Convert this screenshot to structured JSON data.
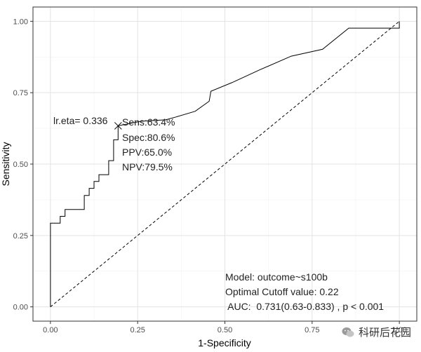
{
  "chart_data": {
    "type": "line",
    "title": "",
    "xlabel": "1-Specificity",
    "ylabel": "Sensitivity",
    "xlim": [
      -0.05,
      1.05
    ],
    "ylim": [
      -0.05,
      1.05
    ],
    "xticks": [
      0.0,
      0.25,
      0.5,
      0.75,
      1.0
    ],
    "xtick_labels": [
      "0.00",
      "0.25",
      "0.50",
      "0.75",
      "1.00"
    ],
    "yticks": [
      0.0,
      0.25,
      0.5,
      0.75,
      1.0
    ],
    "ytick_labels": [
      "0.00",
      "0.25",
      "0.50",
      "0.75",
      "1.00"
    ],
    "grid": true,
    "series": [
      {
        "name": "ROC",
        "style": "solid",
        "color": "#000000",
        "points": [
          [
            0.0,
            0.0
          ],
          [
            0.0,
            0.293
          ],
          [
            0.028,
            0.293
          ],
          [
            0.028,
            0.317
          ],
          [
            0.042,
            0.317
          ],
          [
            0.042,
            0.341
          ],
          [
            0.097,
            0.341
          ],
          [
            0.097,
            0.39
          ],
          [
            0.111,
            0.39
          ],
          [
            0.111,
            0.415
          ],
          [
            0.125,
            0.415
          ],
          [
            0.125,
            0.439
          ],
          [
            0.139,
            0.439
          ],
          [
            0.139,
            0.463
          ],
          [
            0.167,
            0.463
          ],
          [
            0.167,
            0.512
          ],
          [
            0.181,
            0.512
          ],
          [
            0.181,
            0.585
          ],
          [
            0.194,
            0.585
          ],
          [
            0.194,
            0.634
          ],
          [
            0.26,
            0.65
          ],
          [
            0.33,
            0.655
          ],
          [
            0.36,
            0.665
          ],
          [
            0.415,
            0.685
          ],
          [
            0.455,
            0.72
          ],
          [
            0.46,
            0.755
          ],
          [
            0.52,
            0.785
          ],
          [
            0.6,
            0.83
          ],
          [
            0.69,
            0.878
          ],
          [
            0.78,
            0.902
          ],
          [
            0.855,
            0.976
          ],
          [
            1.0,
            0.976
          ],
          [
            1.0,
            1.0
          ]
        ]
      },
      {
        "name": "Reference",
        "style": "dashed",
        "color": "#000000",
        "points": [
          [
            0.0,
            0.0
          ],
          [
            1.0,
            1.0
          ]
        ]
      }
    ],
    "cutoff_point": {
      "x": 0.194,
      "y": 0.634,
      "marker": "x"
    },
    "annotations": {
      "cutoff_label": "lr.eta= 0.336",
      "sens": "Sens:63.4%",
      "spec": "Spec:80.6%",
      "ppv": "PPV:65.0%",
      "npv": "NPV:79.5%",
      "model": "Model: outcome~s100b",
      "cutoff_value": "Optimal Cutoff value:  0.22",
      "auc": " AUC:  0.731(0.63-0.833) , p < 0.001"
    },
    "watermark": "科研后花园"
  }
}
